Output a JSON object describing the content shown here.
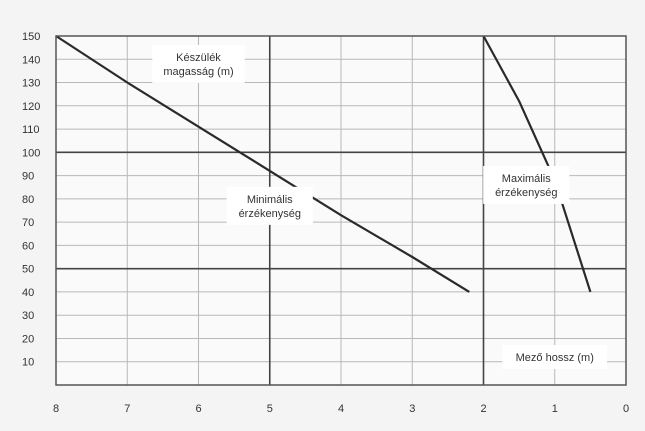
{
  "chart_data": {
    "type": "line",
    "title": "",
    "xlabel": "",
    "ylabel": "",
    "xlim": [
      8,
      0
    ],
    "ylim": [
      0,
      150
    ],
    "x_ticks": [
      "8",
      "7",
      "6",
      "5",
      "4",
      "3",
      "2",
      "1",
      "0"
    ],
    "y_ticks": [
      "150",
      "140",
      "130",
      "120",
      "110",
      "100",
      "90",
      "80",
      "70",
      "60",
      "50",
      "40",
      "30",
      "20",
      "10"
    ],
    "grid": true,
    "series": [
      {
        "name": "",
        "points": [
          [
            8,
            150
          ],
          [
            7,
            130
          ],
          [
            6,
            111
          ],
          [
            5,
            92
          ],
          [
            4,
            73
          ],
          [
            3,
            55
          ],
          [
            2.2,
            40
          ]
        ]
      },
      {
        "name": "",
        "points": [
          [
            2,
            150
          ],
          [
            1.5,
            122
          ],
          [
            1.0,
            88
          ],
          [
            0.5,
            40
          ]
        ]
      }
    ],
    "reference_lines": {
      "horizontal": [
        100,
        50
      ],
      "vertical": [
        5,
        2
      ]
    },
    "annotations": [
      {
        "lines": [
          "Készülék",
          "magasság (m)"
        ],
        "x": 6.0,
        "y": 138
      },
      {
        "lines": [
          "Minimális",
          "érzékenység"
        ],
        "x": 5.0,
        "y": 77
      },
      {
        "lines": [
          "Maximális",
          "érzékenység"
        ],
        "x": 1.4,
        "y": 86
      },
      {
        "lines": [
          "Mező hossz (m)"
        ],
        "x": 1.0,
        "y": 12
      }
    ],
    "colors": {
      "line": "#2a2a2a",
      "grid": "#b8b8b8",
      "reference": "#444444",
      "background": "#fafafa",
      "frame": "#555555"
    }
  }
}
